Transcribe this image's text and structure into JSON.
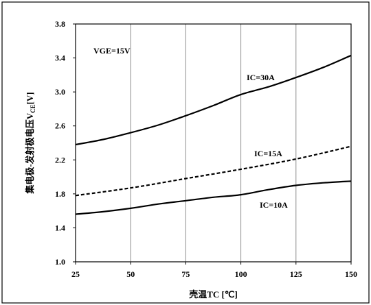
{
  "chart_data": {
    "type": "line",
    "xlabel": "壳温TC [℃]",
    "ylabel": {
      "main": "集电极-发射极电压V",
      "sub": "CE",
      "unit": "[V]"
    },
    "xlim": [
      25,
      150
    ],
    "ylim": [
      1.0,
      3.8
    ],
    "x_ticks": [
      25,
      50,
      75,
      100,
      125,
      150
    ],
    "y_ticks": [
      "1.0",
      "1.4",
      "1.8",
      "2.2",
      "2.6",
      "3.0",
      "3.4",
      "3.8"
    ],
    "grid": "vertical",
    "annotations": {
      "condition": "VGE=15V"
    },
    "series": [
      {
        "name": "IC=30A",
        "style": "solid",
        "x": [
          25,
          37.5,
          50,
          62.5,
          75,
          87.5,
          100,
          112.5,
          125,
          137.5,
          150
        ],
        "y": [
          2.38,
          2.44,
          2.52,
          2.61,
          2.72,
          2.84,
          2.97,
          3.06,
          3.17,
          3.29,
          3.43
        ]
      },
      {
        "name": "IC=15A",
        "style": "dashed",
        "x": [
          25,
          50,
          75,
          100,
          125,
          150
        ],
        "y": [
          1.78,
          1.87,
          1.98,
          2.09,
          2.21,
          2.36
        ]
      },
      {
        "name": "IC=10A",
        "style": "solid",
        "x": [
          25,
          37.5,
          50,
          62.5,
          75,
          87.5,
          100,
          112.5,
          125,
          137.5,
          150
        ],
        "y": [
          1.56,
          1.59,
          1.63,
          1.68,
          1.72,
          1.76,
          1.79,
          1.85,
          1.9,
          1.93,
          1.95
        ]
      }
    ]
  }
}
